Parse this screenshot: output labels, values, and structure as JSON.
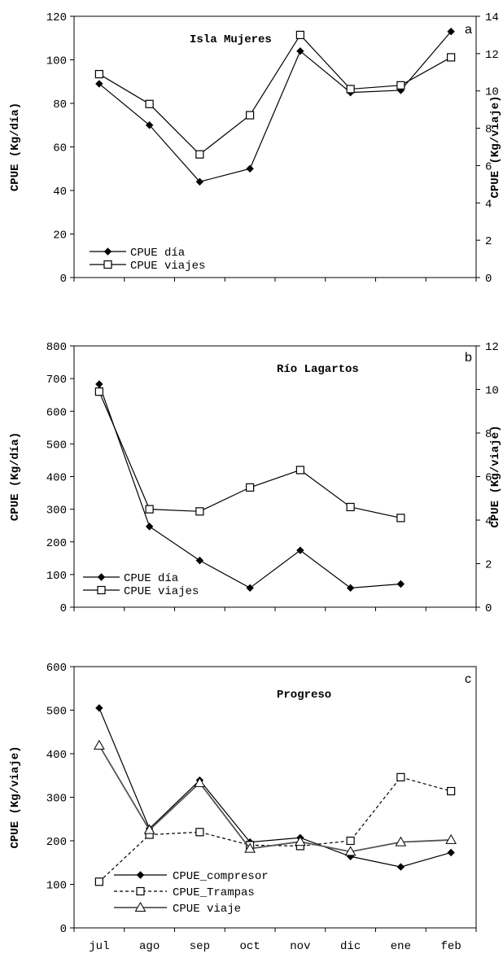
{
  "chart_data": [
    {
      "type": "line",
      "panel": "a",
      "title": "Isla Mujeres",
      "ylabel": "CPUE (Kg/día)",
      "y2label": "CPUE (Kg/viaje)",
      "ylim": [
        0,
        120
      ],
      "y2lim": [
        0,
        14
      ],
      "yticks": [
        0,
        20,
        40,
        60,
        80,
        100,
        120
      ],
      "y2ticks": [
        0,
        2,
        4,
        6,
        8,
        10,
        12,
        14
      ],
      "categories": [
        "jul",
        "ago",
        "sep",
        "oct",
        "nov",
        "dic",
        "ene",
        "feb"
      ],
      "legend_position": "bottom-left",
      "series": [
        {
          "name": "CPUE día",
          "axis": "left",
          "marker": "diamond",
          "color": "#000000",
          "values": [
            89,
            70,
            44,
            50,
            104,
            85,
            86,
            113
          ]
        },
        {
          "name": "CPUE viajes",
          "axis": "right",
          "marker": "square",
          "color": "#000000",
          "values": [
            10.9,
            9.3,
            6.6,
            8.7,
            13.0,
            10.1,
            10.3,
            11.8
          ]
        }
      ]
    },
    {
      "type": "line",
      "panel": "b",
      "title": "Río Lagartos",
      "ylabel": "CPUE (Kg/día)",
      "y2label": "CPUE (Kg/viaje)",
      "ylim": [
        0,
        800
      ],
      "y2lim": [
        0,
        12
      ],
      "yticks": [
        0,
        100,
        200,
        300,
        400,
        500,
        600,
        700,
        800
      ],
      "y2ticks": [
        0,
        2,
        4,
        6,
        8,
        10,
        12
      ],
      "categories": [
        "jul",
        "ago",
        "sep",
        "oct",
        "nov",
        "dic",
        "ene",
        "feb"
      ],
      "legend_position": "bottom-left",
      "series": [
        {
          "name": "CPUE día",
          "axis": "left",
          "marker": "diamond",
          "color": "#000000",
          "values": [
            683,
            247,
            143,
            59,
            174,
            59,
            71,
            null
          ]
        },
        {
          "name": "CPUE viajes",
          "axis": "right",
          "marker": "square",
          "color": "#000000",
          "values": [
            9.9,
            4.5,
            4.4,
            5.5,
            6.3,
            4.6,
            4.1,
            null
          ]
        }
      ]
    },
    {
      "type": "line",
      "panel": "c",
      "title": "Progreso",
      "ylabel": "CPUE (Kg/viaje)",
      "ylim": [
        0,
        600
      ],
      "yticks": [
        0,
        100,
        200,
        300,
        400,
        500,
        600
      ],
      "categories": [
        "jul",
        "ago",
        "sep",
        "oct",
        "nov",
        "dic",
        "ene",
        "feb"
      ],
      "legend_position": "bottom-left",
      "series": [
        {
          "name": "CPUE_compresor",
          "axis": "left",
          "marker": "diamond",
          "dash": "solid",
          "color": "#000000",
          "values": [
            505,
            228,
            339,
            197,
            207,
            164,
            140,
            173
          ]
        },
        {
          "name": "CPUE_Trampas",
          "axis": "left",
          "marker": "square",
          "dash": "dashed",
          "color": "#000000",
          "values": [
            106,
            214,
            220,
            190,
            188,
            200,
            346,
            314
          ]
        },
        {
          "name": "CPUE viaje",
          "axis": "left",
          "marker": "triangle",
          "dash": "solid",
          "color": "#555555",
          "values": [
            419,
            225,
            333,
            182,
            198,
            175,
            197,
            202
          ]
        }
      ]
    }
  ]
}
